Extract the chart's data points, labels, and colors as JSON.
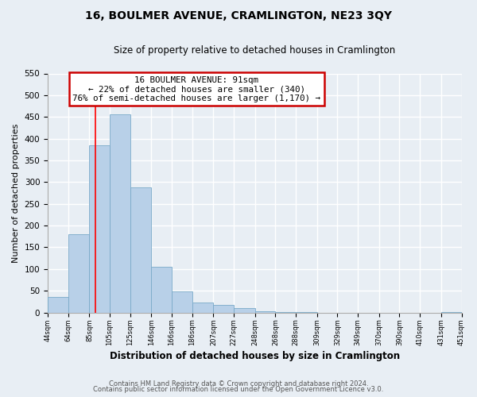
{
  "title": "16, BOULMER AVENUE, CRAMLINGTON, NE23 3QY",
  "subtitle": "Size of property relative to detached houses in Cramlington",
  "xlabel": "Distribution of detached houses by size in Cramlington",
  "ylabel": "Number of detached properties",
  "bin_edges": [
    44,
    64,
    85,
    105,
    125,
    146,
    166,
    186,
    207,
    227,
    248,
    268,
    288,
    309,
    329,
    349,
    370,
    390,
    410,
    431,
    451
  ],
  "bar_heights": [
    35,
    180,
    385,
    455,
    288,
    105,
    48,
    23,
    18,
    10,
    3,
    1,
    1,
    0,
    0,
    0,
    0,
    0,
    0,
    1
  ],
  "bar_color": "#b8d0e8",
  "bar_edgecolor": "#7aaac8",
  "property_size": 91,
  "red_line_x": 91,
  "ylim": [
    0,
    550
  ],
  "yticks": [
    0,
    50,
    100,
    150,
    200,
    250,
    300,
    350,
    400,
    450,
    500,
    550
  ],
  "annotation_title": "16 BOULMER AVENUE: 91sqm",
  "annotation_line1": "← 22% of detached houses are smaller (340)",
  "annotation_line2": "76% of semi-detached houses are larger (1,170) →",
  "annotation_box_color": "#ffffff",
  "annotation_box_edgecolor": "#cc0000",
  "footer1": "Contains HM Land Registry data © Crown copyright and database right 2024.",
  "footer2": "Contains public sector information licensed under the Open Government Licence v3.0.",
  "background_color": "#e8eef4",
  "grid_color": "#ffffff"
}
